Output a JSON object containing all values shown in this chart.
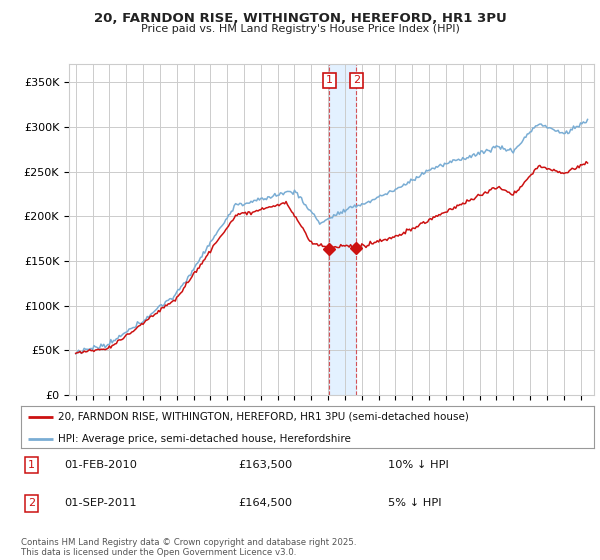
{
  "title_line1": "20, FARNDON RISE, WITHINGTON, HEREFORD, HR1 3PU",
  "title_line2": "Price paid vs. HM Land Registry's House Price Index (HPI)",
  "ylim": [
    0,
    370000
  ],
  "yticks": [
    0,
    50000,
    100000,
    150000,
    200000,
    250000,
    300000,
    350000
  ],
  "ytick_labels": [
    "£0",
    "£50K",
    "£100K",
    "£150K",
    "£200K",
    "£250K",
    "£300K",
    "£350K"
  ],
  "hpi_color": "#7aadd4",
  "price_color": "#cc1111",
  "purchase1_date_num": 2010.08,
  "purchase1_price": 163500,
  "purchase2_date_num": 2011.67,
  "purchase2_price": 164500,
  "legend_property": "20, FARNDON RISE, WITHINGTON, HEREFORD, HR1 3PU (semi-detached house)",
  "legend_hpi": "HPI: Average price, semi-detached house, Herefordshire",
  "annotation1_date": "01-FEB-2010",
  "annotation1_price": "£163,500",
  "annotation1_hpi": "10% ↓ HPI",
  "annotation2_date": "01-SEP-2011",
  "annotation2_price": "£164,500",
  "annotation2_hpi": "5% ↓ HPI",
  "copyright_text": "Contains HM Land Registry data © Crown copyright and database right 2025.\nThis data is licensed under the Open Government Licence v3.0.",
  "bg_color": "#ffffff",
  "grid_color": "#cccccc",
  "shade_color": "#ddeeff"
}
